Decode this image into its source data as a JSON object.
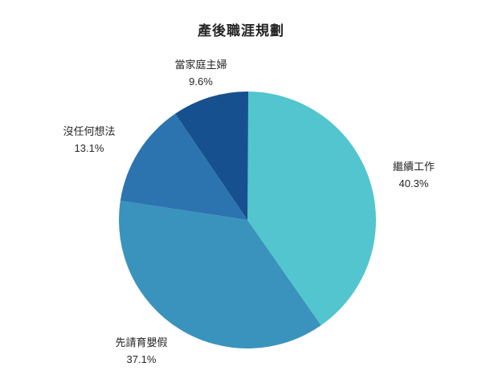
{
  "title": "產後職涯規劃",
  "background_color": "#FFFFFF",
  "text_color": "#262626",
  "chart_data": {
    "type": "pie",
    "title": "產後職涯規劃",
    "legend_position": "none",
    "labels_position": "outside",
    "start_angle_deg": 0,
    "direction": "clockwise",
    "slices": [
      {
        "label": "繼續工作",
        "value_pct": 40.3,
        "display": "40.3%",
        "color": "#52C5CE"
      },
      {
        "label": "先請育嬰假",
        "value_pct": 37.1,
        "display": "37.1%",
        "color": "#3A93BD"
      },
      {
        "label": "沒任何想法",
        "value_pct": 13.1,
        "display": "13.1%",
        "color": "#2C74B0"
      },
      {
        "label": "當家庭主婦",
        "value_pct": 9.6,
        "display": "9.6%",
        "color": "#17508F"
      }
    ]
  }
}
